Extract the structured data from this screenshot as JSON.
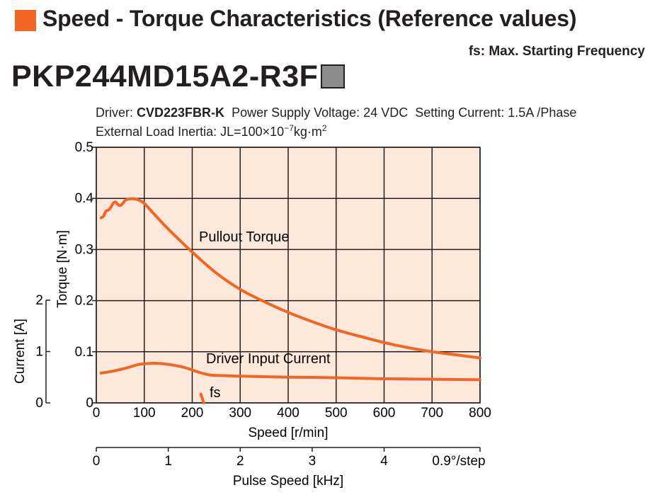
{
  "header": {
    "title": "Speed - Torque Characteristics (Reference values)",
    "fs_note": "fs: Max. Starting Frequency",
    "accent_color": "#f26522"
  },
  "model": {
    "name": "PKP244MD15A2-R3F",
    "marker_color": "#8c8c8c"
  },
  "conditions": {
    "driver_label": "Driver:",
    "driver_model": "CVD223FBR-K",
    "power_supply": "Power Supply Voltage: 24 VDC",
    "setting_current": "Setting Current: 1.5A /Phase",
    "load_inertia_prefix": "External Load Inertia: JL=100×10",
    "load_inertia_exponent": "−7",
    "load_inertia_suffix": "kg·m",
    "load_inertia_suffix_exponent": "2"
  },
  "chart_data": {
    "type": "line",
    "plot_background": "#fde9db",
    "line_color": "#f26522",
    "grid": true,
    "x_axis": {
      "label": "Speed [r/min]",
      "range": [
        0,
        800
      ],
      "ticks": [
        0,
        100,
        200,
        300,
        400,
        500,
        600,
        700,
        800
      ]
    },
    "torque_axis": {
      "label": "Torque [N·m]",
      "range": [
        0,
        0.5
      ],
      "ticks": [
        "0",
        "0.1",
        "0.2",
        "0.3",
        "0.4",
        "0.5"
      ]
    },
    "current_axis": {
      "label": "Current [A]",
      "range": [
        0,
        2
      ],
      "ticks": [
        "0",
        "1",
        "2"
      ]
    },
    "pulse_axis": {
      "label": "Pulse Speed [kHz]",
      "range": [
        0,
        5.333
      ],
      "ticks": [
        "0",
        "1",
        "2",
        "3",
        "4"
      ],
      "step_note": "0.9°/step"
    },
    "series": [
      {
        "name": "Pullout Torque",
        "axis": "torque",
        "points": [
          [
            10,
            0.362
          ],
          [
            15,
            0.365
          ],
          [
            20,
            0.375
          ],
          [
            25,
            0.377
          ],
          [
            30,
            0.382
          ],
          [
            35,
            0.39
          ],
          [
            40,
            0.393
          ],
          [
            45,
            0.388
          ],
          [
            50,
            0.386
          ],
          [
            55,
            0.39
          ],
          [
            60,
            0.396
          ],
          [
            65,
            0.398
          ],
          [
            70,
            0.399
          ],
          [
            80,
            0.399
          ],
          [
            90,
            0.396
          ],
          [
            100,
            0.39
          ],
          [
            120,
            0.37
          ],
          [
            150,
            0.34
          ],
          [
            200,
            0.295
          ],
          [
            250,
            0.254
          ],
          [
            300,
            0.222
          ],
          [
            350,
            0.198
          ],
          [
            400,
            0.177
          ],
          [
            450,
            0.159
          ],
          [
            500,
            0.143
          ],
          [
            550,
            0.13
          ],
          [
            600,
            0.118
          ],
          [
            650,
            0.108
          ],
          [
            700,
            0.1
          ],
          [
            750,
            0.094
          ],
          [
            800,
            0.088
          ]
        ]
      },
      {
        "name": "Driver Input Current",
        "axis": "current",
        "points": [
          [
            10,
            0.58
          ],
          [
            30,
            0.61
          ],
          [
            50,
            0.65
          ],
          [
            70,
            0.7
          ],
          [
            90,
            0.75
          ],
          [
            110,
            0.77
          ],
          [
            130,
            0.77
          ],
          [
            150,
            0.75
          ],
          [
            180,
            0.7
          ],
          [
            200,
            0.64
          ],
          [
            220,
            0.58
          ],
          [
            240,
            0.54
          ],
          [
            270,
            0.53
          ],
          [
            300,
            0.52
          ],
          [
            350,
            0.51
          ],
          [
            400,
            0.5
          ],
          [
            500,
            0.49
          ],
          [
            600,
            0.47
          ],
          [
            700,
            0.46
          ],
          [
            800,
            0.45
          ]
        ]
      },
      {
        "name": "fs",
        "axis": "torque",
        "points": [
          [
            218,
            0.017
          ],
          [
            224,
            0.0
          ]
        ]
      }
    ]
  }
}
